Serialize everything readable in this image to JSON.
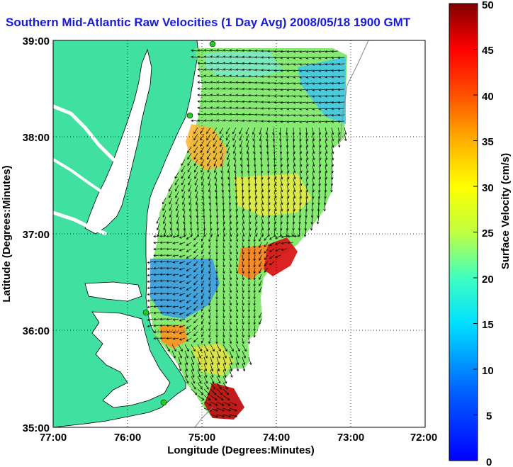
{
  "title": "Southern Mid-Atlantic Raw Velocities (1 Day Avg) 2008/05/18 1900 GMT",
  "map": {
    "x_axis": {
      "label": "Longitude (Degrees:Minutes)",
      "ticks": [
        "77:00",
        "76:00",
        "75:00",
        "74:00",
        "73:00",
        "72:00"
      ]
    },
    "y_axis": {
      "label": "Latitude (Degrees:Minutes)",
      "ticks": [
        "39:00",
        "38:00",
        "37:00",
        "36:00",
        "35:00"
      ]
    },
    "grid": "dotted",
    "land_color": "#40e0a0",
    "water_color": "#ffffff"
  },
  "colorbar": {
    "label": "Surface Velocity (cm/s)",
    "ticks": [
      "50",
      "45",
      "40",
      "35",
      "30",
      "25",
      "20",
      "15",
      "10",
      "5",
      "0"
    ],
    "range": [
      0,
      50
    ],
    "colormap": "jet"
  },
  "chart_data": {
    "type": "heatmap",
    "title": "Southern Mid-Atlantic Raw Velocities (1 Day Avg) 2008/05/18 1900 GMT",
    "xlabel": "Longitude (Degrees:Minutes)",
    "ylabel": "Latitude (Degrees:Minutes)",
    "xlim": [
      -77,
      -72
    ],
    "ylim": [
      35,
      39
    ],
    "colorbar_label": "Surface Velocity (cm/s)",
    "colorbar_range": [
      0,
      50
    ]
  }
}
